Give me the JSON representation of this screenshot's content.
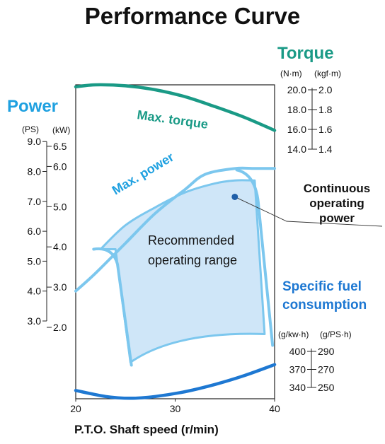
{
  "header": {
    "title": "Performance Curve"
  },
  "labels": {
    "power": "Power",
    "torque": "Torque",
    "fuel_line1": "Specific fuel",
    "fuel_line2": "consumption",
    "continuous_line1": "Continuous",
    "continuous_line2": "operating",
    "continuous_line3": "power",
    "max_torque": "Max. torque",
    "max_power": "Max. power",
    "range_line1": "Recommended",
    "range_line2": "operating range",
    "x_axis": "P.T.O. Shaft speed  (r/min)"
  },
  "axes": {
    "power": {
      "unit_ps": "(PS)",
      "unit_kw": "(kW)",
      "ps_ticks": [
        {
          "label": "9.0",
          "value": 9.0
        },
        {
          "label": "8.0",
          "value": 8.0
        },
        {
          "label": "7.0",
          "value": 7.0
        },
        {
          "label": "6.0",
          "value": 6.0
        },
        {
          "label": "5.0",
          "value": 5.0
        },
        {
          "label": "4.0",
          "value": 4.0
        },
        {
          "label": "3.0",
          "value": 3.0
        }
      ],
      "kw_ticks": [
        {
          "label": "6.5",
          "value": 6.5
        },
        {
          "label": "6.0",
          "value": 6.0
        },
        {
          "label": "5.0",
          "value": 5.0
        },
        {
          "label": "4.0",
          "value": 4.0
        },
        {
          "label": "3.0",
          "value": 3.0
        },
        {
          "label": "2.0",
          "value": 2.0
        }
      ]
    },
    "torque": {
      "unit_nm": "(N·m)",
      "unit_kgfm": "(kgf·m)",
      "nm_ticks": [
        {
          "label": "20.0",
          "value": 20.0
        },
        {
          "label": "18.0",
          "value": 18.0
        },
        {
          "label": "16.0",
          "value": 16.0
        },
        {
          "label": "14.0",
          "value": 14.0
        }
      ],
      "kgfm_ticks": [
        {
          "label": "2.0",
          "value": 2.0
        },
        {
          "label": "1.8",
          "value": 1.8
        },
        {
          "label": "1.6",
          "value": 1.6
        },
        {
          "label": "1.4",
          "value": 1.4
        }
      ]
    },
    "fuel": {
      "unit_gkwh": "(g/kw·h)",
      "unit_gpsh": "(g/PS·h)",
      "gkwh_ticks": [
        {
          "label": "400",
          "value": 400
        },
        {
          "label": "370",
          "value": 370
        },
        {
          "label": "340",
          "value": 340
        }
      ],
      "gpsh_ticks": [
        {
          "label": "290",
          "value": 290
        },
        {
          "label": "270",
          "value": 270
        },
        {
          "label": "250",
          "value": 250
        }
      ]
    },
    "x": {
      "range": [
        20,
        40
      ],
      "ticks": [
        {
          "label": "20",
          "value": 20
        },
        {
          "label": "30",
          "value": 30
        },
        {
          "label": "40",
          "value": 40
        }
      ]
    }
  },
  "colors": {
    "power": "#1ea0e0",
    "torque": "#1a9a86",
    "fuel": "#1e78d2",
    "curve_light": "#7cc7ee",
    "range_fill": "#cfe6f8",
    "marker": "#1f5fa8"
  },
  "chart_data": {
    "type": "line",
    "xlabel": "P.T.O. Shaft speed  (r/min)",
    "xlim": [
      20,
      40
    ],
    "series": [
      {
        "name": "Max. torque",
        "axis": "torque_nm",
        "x": [
          20,
          22,
          25,
          28,
          31,
          34,
          37,
          40
        ],
        "y": [
          20.3,
          20.5,
          20.4,
          20.0,
          19.3,
          18.3,
          17.2,
          15.9
        ]
      },
      {
        "name": "Max. power",
        "axis": "power_ps",
        "x": [
          20,
          22,
          25,
          28,
          31,
          33,
          36,
          38,
          40
        ],
        "y": [
          4.0,
          4.6,
          5.6,
          6.6,
          7.4,
          7.9,
          8.1,
          8.1,
          8.1
        ]
      },
      {
        "name": "Continuous operating power",
        "axis": "power_ps",
        "x": [
          22.5,
          25,
          28,
          31,
          34,
          36,
          38
        ],
        "y": [
          5.4,
          6.2,
          6.8,
          7.3,
          7.6,
          7.7,
          7.7
        ]
      },
      {
        "name": "Specific fuel consumption",
        "axis": "fuel_gkwh",
        "x": [
          20,
          23,
          25.5,
          28,
          31,
          34,
          37,
          40
        ],
        "y": [
          335,
          325,
          322,
          325,
          333,
          345,
          360,
          378
        ]
      }
    ],
    "marker": {
      "x": 36,
      "y_ps": 7.15
    },
    "recommended_range": {
      "x": [
        25.5,
        38
      ],
      "power_ps_bounds": [
        1.9,
        7.7
      ]
    }
  }
}
